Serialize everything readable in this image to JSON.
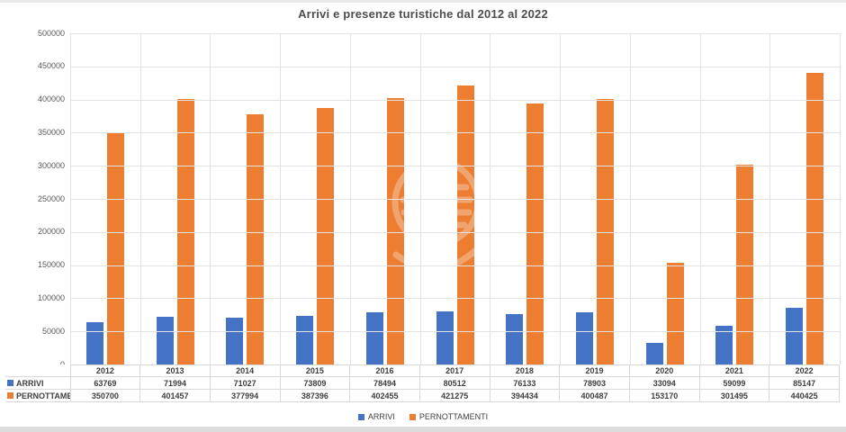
{
  "window": {
    "background": "#ffffff",
    "top_strip_color": "#e8e8e8",
    "bottom_strip_color": "#dcdcdc"
  },
  "chart_data": {
    "type": "bar",
    "title": "Arrivi e presenze turistiche dal 2012 al 2022",
    "categories": [
      "2012",
      "2013",
      "2014",
      "2015",
      "2016",
      "2017",
      "2018",
      "2019",
      "2020",
      "2021",
      "2022"
    ],
    "series": [
      {
        "name": "ARRIVI",
        "color": "#4472C4",
        "values": [
          63769,
          71994,
          71027,
          73809,
          78494,
          80512,
          76133,
          78903,
          33094,
          59099,
          85147
        ]
      },
      {
        "name": "PERNOTTAMENTI",
        "color": "#ED7D31",
        "values": [
          350700,
          401457,
          377994,
          387396,
          402455,
          421275,
          394434,
          400487,
          153170,
          301495,
          440425
        ]
      }
    ],
    "ylim": [
      0,
      500000
    ],
    "ytick_step": 50000,
    "ytick_labels": [
      "0",
      "50000",
      "100000",
      "150000",
      "200000",
      "250000",
      "300000",
      "350000",
      "400000",
      "450000",
      "500000"
    ],
    "grid": "horizontal and vertical gridlines",
    "gridline_color": "#e3e3e3",
    "axis_label_color": "#595959",
    "title_color": "#4d4d4d",
    "legend_position": "bottom",
    "data_table_shown": true,
    "watermark": "faint white coat-of-arms emblem over center of plot"
  },
  "legend": {
    "items": [
      {
        "label": "ARRIVI",
        "color": "#4472C4"
      },
      {
        "label": "PERNOTTAMENTI",
        "color": "#ED7D31"
      }
    ]
  }
}
